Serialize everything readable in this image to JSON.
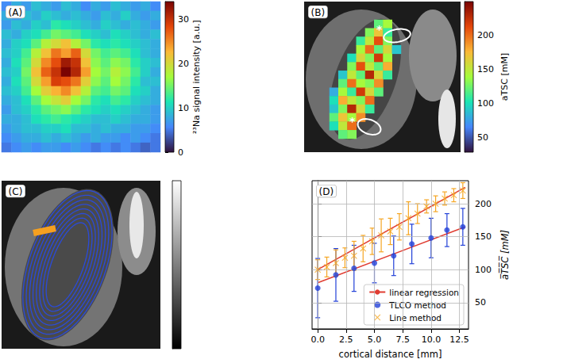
{
  "chart_data": [
    {
      "type": "heatmap",
      "title": "(A)",
      "tick_labels": false,
      "cells": [
        [
          6,
          8,
          7,
          9,
          8,
          7,
          9,
          8,
          6,
          8,
          7,
          9,
          8,
          7,
          8,
          6
        ],
        [
          8,
          7,
          9,
          8,
          10,
          9,
          8,
          9,
          8,
          7,
          9,
          8,
          10,
          8,
          7,
          8
        ],
        [
          7,
          9,
          8,
          10,
          9,
          12,
          11,
          10,
          9,
          8,
          10,
          9,
          8,
          9,
          8,
          7
        ],
        [
          9,
          8,
          10,
          11,
          13,
          15,
          14,
          13,
          11,
          10,
          9,
          11,
          10,
          9,
          8,
          9
        ],
        [
          8,
          10,
          11,
          14,
          18,
          20,
          22,
          18,
          15,
          12,
          11,
          12,
          11,
          10,
          9,
          8
        ],
        [
          9,
          10,
          13,
          18,
          22,
          26,
          24,
          27,
          20,
          15,
          13,
          14,
          13,
          11,
          9,
          8
        ],
        [
          8,
          11,
          14,
          20,
          25,
          28,
          32,
          30,
          22,
          16,
          14,
          16,
          15,
          12,
          10,
          9
        ],
        [
          9,
          10,
          15,
          22,
          27,
          30,
          34,
          31,
          24,
          17,
          15,
          18,
          16,
          13,
          10,
          8
        ],
        [
          8,
          11,
          14,
          20,
          24,
          29,
          28,
          26,
          21,
          16,
          14,
          17,
          15,
          12,
          9,
          9
        ],
        [
          9,
          10,
          13,
          17,
          21,
          23,
          25,
          22,
          18,
          14,
          13,
          15,
          14,
          11,
          10,
          8
        ],
        [
          8,
          9,
          11,
          14,
          17,
          19,
          21,
          17,
          15,
          12,
          11,
          13,
          12,
          10,
          9,
          8
        ],
        [
          7,
          9,
          10,
          12,
          14,
          15,
          16,
          14,
          12,
          11,
          10,
          11,
          10,
          9,
          8,
          7
        ],
        [
          8,
          8,
          9,
          11,
          12,
          13,
          12,
          11,
          10,
          9,
          9,
          10,
          9,
          8,
          8,
          7
        ],
        [
          7,
          8,
          9,
          9,
          10,
          10,
          11,
          9,
          9,
          8,
          9,
          8,
          8,
          7,
          7,
          6
        ],
        [
          6,
          7,
          8,
          8,
          9,
          8,
          9,
          8,
          7,
          8,
          7,
          7,
          6,
          7,
          6,
          5
        ],
        [
          5,
          6,
          7,
          6,
          7,
          7,
          6,
          7,
          6,
          5,
          6,
          5,
          6,
          5,
          4,
          5
        ]
      ],
      "colorbar": {
        "label": "²³Na signal intensity [a.u.]",
        "range": [
          0,
          34
        ],
        "ticks": [
          0,
          10,
          20,
          30
        ]
      }
    },
    {
      "type": "overlay",
      "title": "(B)",
      "tick_labels": false,
      "cells": [
        [
          null,
          null,
          null,
          null,
          null,
          120,
          140,
          null
        ],
        [
          null,
          null,
          null,
          null,
          130,
          170,
          110,
          null
        ],
        [
          null,
          null,
          null,
          110,
          150,
          210,
          130,
          null
        ],
        [
          null,
          null,
          null,
          140,
          200,
          120,
          160,
          90
        ],
        [
          null,
          null,
          100,
          160,
          130,
          220,
          140,
          null
        ],
        [
          null,
          null,
          130,
          210,
          150,
          120,
          180,
          null
        ],
        [
          null,
          90,
          150,
          120,
          230,
          160,
          110,
          null
        ],
        [
          null,
          120,
          200,
          140,
          130,
          190,
          null,
          null
        ],
        [
          80,
          140,
          110,
          220,
          160,
          120,
          null,
          null
        ],
        [
          100,
          180,
          150,
          130,
          200,
          null,
          null,
          null
        ],
        [
          90,
          130,
          230,
          160,
          110,
          null,
          null,
          null
        ],
        [
          120,
          170,
          140,
          190,
          null,
          null,
          null,
          null
        ],
        [
          100,
          150,
          200,
          null,
          null,
          null,
          null,
          null
        ],
        [
          null,
          120,
          130,
          null,
          null,
          null,
          null,
          null
        ]
      ],
      "annotations": [
        "*",
        "*"
      ],
      "colorbar": {
        "label": "aTSC [mM]",
        "range": [
          28,
          250
        ],
        "ticks": [
          50,
          100,
          150,
          200
        ]
      }
    },
    {
      "type": "image",
      "title": "(C)",
      "tick_labels": false,
      "colorbar": {
        "tick_labels": false
      }
    },
    {
      "type": "line",
      "title": "(D)",
      "x_label": "cortical distance [mm]",
      "y_label": "a̅T̅S̅C̅ [mM]",
      "xlim": [
        -0.5,
        13.3
      ],
      "xticks": [
        {
          "value": 0,
          "label": "0.0"
        },
        2.5,
        {
          "value": 5,
          "label": "5.0"
        },
        7.5,
        {
          "value": 10,
          "label": "10.0"
        },
        12.5
      ],
      "ylim": [
        10,
        235
      ],
      "yticks": [
        50,
        100,
        150,
        200
      ],
      "grid": true,
      "legend": "lower right",
      "series": [
        {
          "name": "linear regression",
          "type": "line",
          "color": "#e03c31",
          "x": [
            0,
            13
          ],
          "values": [
            100,
            225
          ]
        },
        {
          "name": "linear regression",
          "type": "line",
          "color": "#e03c31",
          "x": [
            0,
            13
          ],
          "values": [
            80,
            165
          ]
        },
        {
          "name": "TLCO method",
          "type": "scatter",
          "marker": "circle",
          "color": "#2341d8",
          "x": [
            0,
            1.6,
            3.2,
            5.0,
            6.7,
            8.3,
            10.0,
            11.4,
            12.8
          ],
          "values": [
            72,
            92,
            102,
            110,
            121,
            139,
            148,
            160,
            165
          ],
          "errors": [
            45,
            40,
            35,
            30,
            30,
            30,
            30,
            25,
            28
          ]
        },
        {
          "name": "Line method",
          "type": "scatter",
          "marker": "x",
          "color": "#f5a623",
          "x": [
            0,
            0.8,
            1.6,
            2.4,
            3.2,
            4.0,
            4.8,
            5.6,
            6.4,
            7.2,
            8.0,
            8.8,
            9.6,
            10.4,
            11.2,
            12.0,
            12.8
          ],
          "values": [
            100,
            104,
            110,
            118,
            121,
            132,
            143,
            152,
            158,
            165,
            178,
            185,
            196,
            200,
            208,
            213,
            220
          ],
          "errors": [
            15,
            15,
            20,
            15,
            22,
            20,
            20,
            25,
            20,
            20,
            25,
            15,
            10,
            12,
            10,
            10,
            12
          ]
        }
      ]
    }
  ]
}
